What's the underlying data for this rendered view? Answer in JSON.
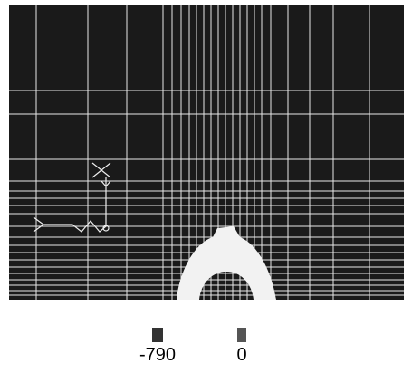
{
  "legend": {
    "min_label": "-790",
    "max_label": "0"
  }
}
